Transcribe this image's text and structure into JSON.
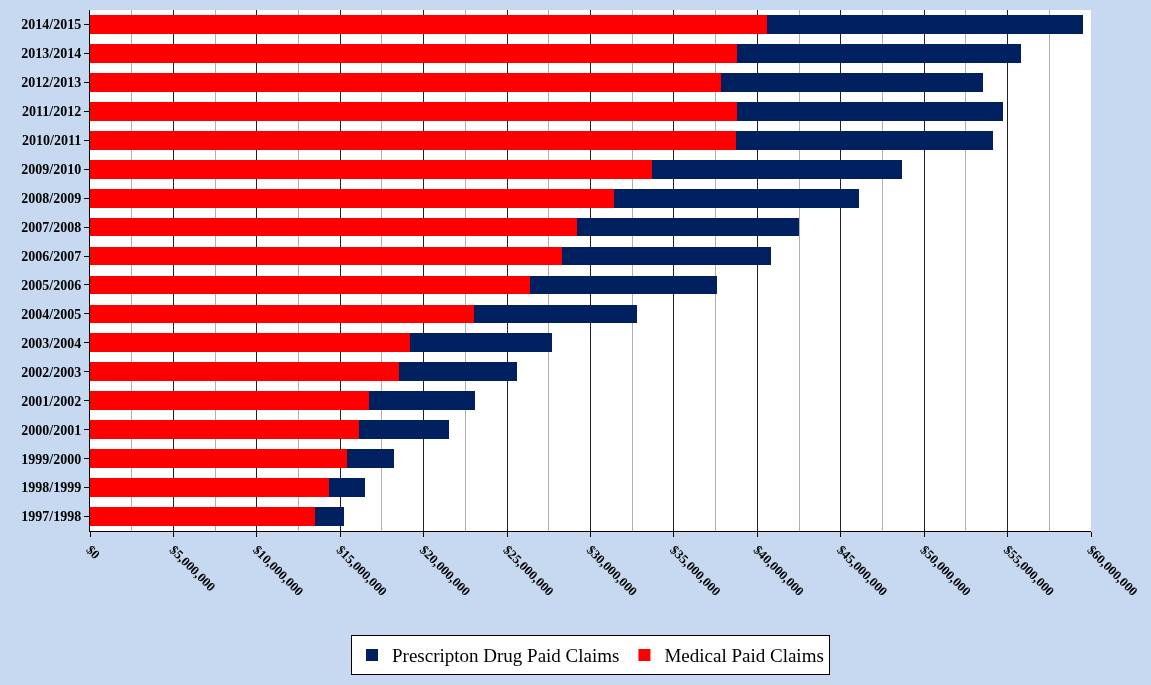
{
  "chart_data": {
    "type": "bar",
    "orientation": "horizontal",
    "stacked": true,
    "categories": [
      "2014/2015",
      "2013/2014",
      "2012/2013",
      "2011/2012",
      "2010/2011",
      "2009/2010",
      "2008/2009",
      "2007/2008",
      "2006/2007",
      "2005/2006",
      "2004/2005",
      "2003/2004",
      "2002/2003",
      "2001/2002",
      "2000/2001",
      "1999/2000",
      "1998/1999",
      "1997/1998"
    ],
    "series": [
      {
        "name": "Medical Paid Claims",
        "color": "#ff0000",
        "values": [
          40600000,
          38800000,
          37800000,
          38800000,
          38700000,
          33700000,
          31400000,
          29200000,
          28300000,
          26400000,
          23000000,
          19200000,
          18500000,
          16700000,
          16100000,
          15400000,
          14300000,
          13500000
        ]
      },
      {
        "name": "Prescripton Drug Paid Claims",
        "color": "#002060",
        "values": [
          18900000,
          17000000,
          15700000,
          15900000,
          15400000,
          15000000,
          14700000,
          13300000,
          12500000,
          11200000,
          9800000,
          8500000,
          7100000,
          6400000,
          5400000,
          2800000,
          2200000,
          1700000
        ]
      }
    ],
    "xlim": [
      0,
      60000000
    ],
    "xticks": [
      {
        "value": 0,
        "label": "$0"
      },
      {
        "value": 5000000,
        "label": "$5,000,000"
      },
      {
        "value": 10000000,
        "label": "$10,000,000"
      },
      {
        "value": 15000000,
        "label": "$15,000,000"
      },
      {
        "value": 20000000,
        "label": "$20,000,000"
      },
      {
        "value": 25000000,
        "label": "$25,000,000"
      },
      {
        "value": 30000000,
        "label": "$30,000,000"
      },
      {
        "value": 35000000,
        "label": "$35,000,000"
      },
      {
        "value": 40000000,
        "label": "$40,000,000"
      },
      {
        "value": 45000000,
        "label": "$45,000,000"
      },
      {
        "value": 50000000,
        "label": "$50,000,000"
      },
      {
        "value": 55000000,
        "label": "$55,000,000"
      },
      {
        "value": 60000000,
        "label": "$60,000,000"
      }
    ],
    "grid": "x",
    "legend": "bottom"
  }
}
